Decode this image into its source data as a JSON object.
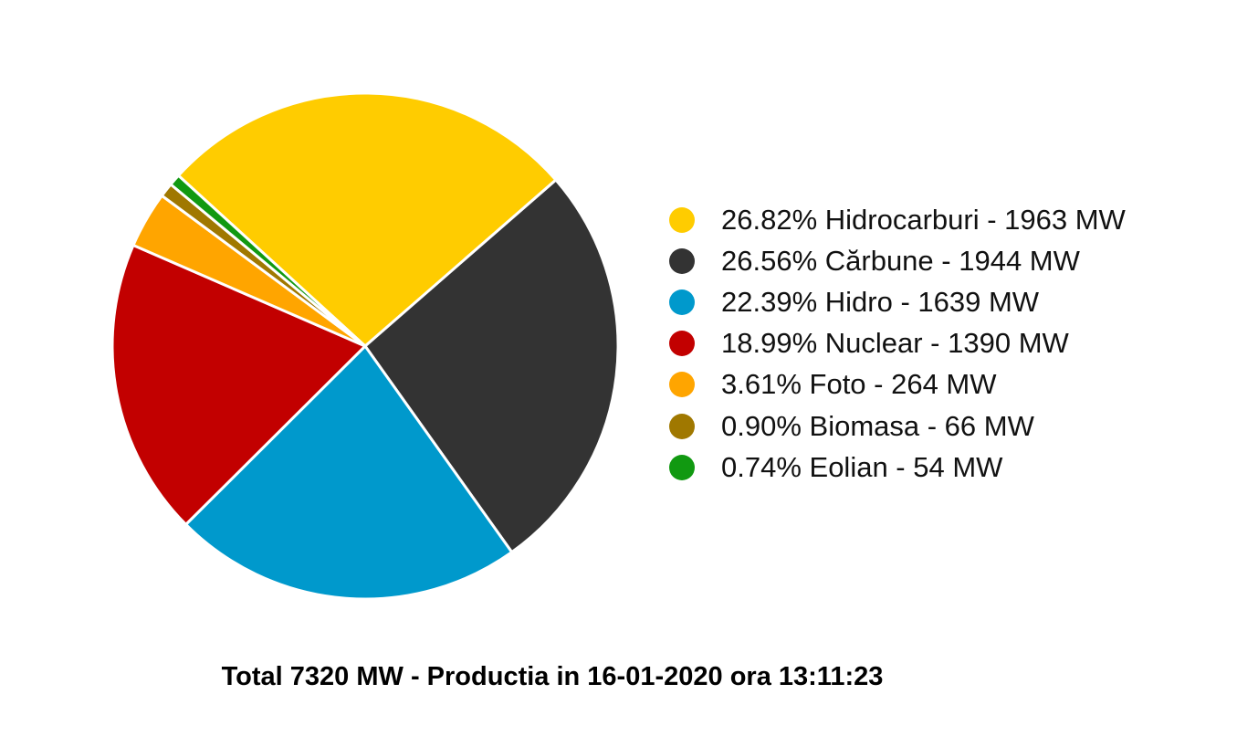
{
  "chart_data": {
    "type": "pie",
    "total_label": "Total 7320 MW - Productia in 16-01-2020 ora 13:11:23",
    "slices": [
      {
        "label": "26.82% Hidrocarburi - 1963 MW",
        "name": "Hidrocarburi",
        "percent": 26.82,
        "value": 1963,
        "color": "#FFCC00"
      },
      {
        "label": "26.56% Cărbune - 1944 MW",
        "name": "Cărbune",
        "percent": 26.56,
        "value": 1944,
        "color": "#333333"
      },
      {
        "label": "22.39% Hidro - 1639 MW",
        "name": "Hidro",
        "percent": 22.39,
        "value": 1639,
        "color": "#0099CC"
      },
      {
        "label": "18.99% Nuclear - 1390 MW",
        "name": "Nuclear",
        "percent": 18.99,
        "value": 1390,
        "color": "#C20000"
      },
      {
        "label": "3.61% Foto - 264 MW",
        "name": "Foto",
        "percent": 3.61,
        "value": 264,
        "color": "#FFA500"
      },
      {
        "label": "0.90% Biomasa - 66 MW",
        "name": "Biomasa",
        "percent": 0.9,
        "value": 66,
        "color": "#A07800"
      },
      {
        "label": "0.74% Eolian - 54 MW",
        "name": "Eolian",
        "percent": 0.74,
        "value": 54,
        "color": "#119911"
      }
    ],
    "legend_position": "right"
  }
}
